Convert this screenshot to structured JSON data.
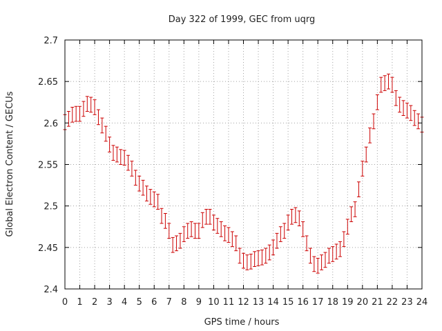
{
  "chart_data": {
    "type": "scatter",
    "title": "Day 322 of 1999, GEC from uqrg",
    "xlabel": "GPS time / hours",
    "ylabel": "Global Electron Content / GECUs",
    "xlim": [
      0,
      24
    ],
    "ylim": [
      2.4,
      2.7
    ],
    "xticks": [
      "0",
      "1",
      "2",
      "3",
      "4",
      "5",
      "6",
      "7",
      "8",
      "9",
      "10",
      "11",
      "12",
      "13",
      "14",
      "15",
      "16",
      "17",
      "18",
      "19",
      "20",
      "21",
      "22",
      "23",
      "24"
    ],
    "yticks": [
      "2.4",
      "2.45",
      "2.5",
      "2.55",
      "2.6",
      "2.65",
      "2.7"
    ],
    "grid": true,
    "color": "#cc0000",
    "error": 0.009,
    "series": [
      {
        "name": "GEC",
        "x": [
          0.0,
          0.25,
          0.5,
          0.75,
          1.0,
          1.25,
          1.5,
          1.75,
          2.0,
          2.25,
          2.5,
          2.75,
          3.0,
          3.25,
          3.5,
          3.75,
          4.0,
          4.25,
          4.5,
          4.75,
          5.0,
          5.25,
          5.5,
          5.75,
          6.0,
          6.25,
          6.5,
          6.75,
          7.0,
          7.25,
          7.5,
          7.75,
          8.0,
          8.25,
          8.5,
          8.75,
          9.0,
          9.25,
          9.5,
          9.75,
          10.0,
          10.25,
          10.5,
          10.75,
          11.0,
          11.25,
          11.5,
          11.75,
          12.0,
          12.25,
          12.5,
          12.75,
          13.0,
          13.25,
          13.5,
          13.75,
          14.0,
          14.25,
          14.5,
          14.75,
          15.0,
          15.25,
          15.5,
          15.75,
          16.0,
          16.25,
          16.5,
          16.75,
          17.0,
          17.25,
          17.5,
          17.75,
          18.0,
          18.25,
          18.5,
          18.75,
          19.0,
          19.25,
          19.5,
          19.75,
          20.0,
          20.25,
          20.5,
          20.75,
          21.0,
          21.25,
          21.5,
          21.75,
          22.0,
          22.25,
          22.5,
          22.75,
          23.0,
          23.25,
          23.5,
          23.75,
          24.0
        ],
        "y": [
          2.601,
          2.605,
          2.61,
          2.611,
          2.611,
          2.617,
          2.623,
          2.622,
          2.619,
          2.607,
          2.597,
          2.587,
          2.574,
          2.564,
          2.562,
          2.559,
          2.558,
          2.552,
          2.545,
          2.534,
          2.527,
          2.522,
          2.515,
          2.511,
          2.508,
          2.505,
          2.488,
          2.482,
          2.47,
          2.453,
          2.455,
          2.458,
          2.466,
          2.47,
          2.472,
          2.47,
          2.47,
          2.483,
          2.487,
          2.487,
          2.48,
          2.476,
          2.472,
          2.467,
          2.465,
          2.46,
          2.455,
          2.44,
          2.434,
          2.432,
          2.433,
          2.436,
          2.437,
          2.438,
          2.44,
          2.444,
          2.45,
          2.458,
          2.466,
          2.47,
          2.48,
          2.487,
          2.489,
          2.485,
          2.472,
          2.455,
          2.44,
          2.43,
          2.428,
          2.432,
          2.435,
          2.44,
          2.442,
          2.445,
          2.448,
          2.46,
          2.475,
          2.49,
          2.496,
          2.52,
          2.545,
          2.562,
          2.585,
          2.602,
          2.625,
          2.646,
          2.648,
          2.65,
          2.646,
          2.63,
          2.622,
          2.618,
          2.615,
          2.612,
          2.606,
          2.602,
          2.598
        ]
      }
    ]
  }
}
